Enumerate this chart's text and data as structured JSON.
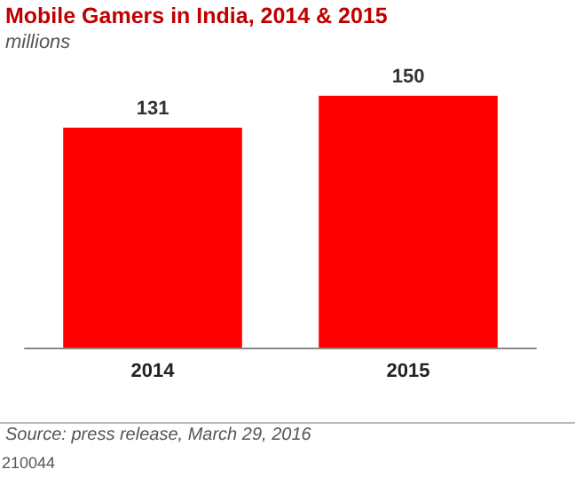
{
  "chart_data": {
    "type": "bar",
    "title": "Mobile Gamers in India, 2014 & 2015",
    "subtitle": "millions",
    "categories": [
      "2014",
      "2015"
    ],
    "values": [
      131,
      150
    ],
    "color": "#ff0000",
    "data_labels": true,
    "annotations": [
      "Source: press release, March 29, 2016",
      "210044"
    ]
  }
}
